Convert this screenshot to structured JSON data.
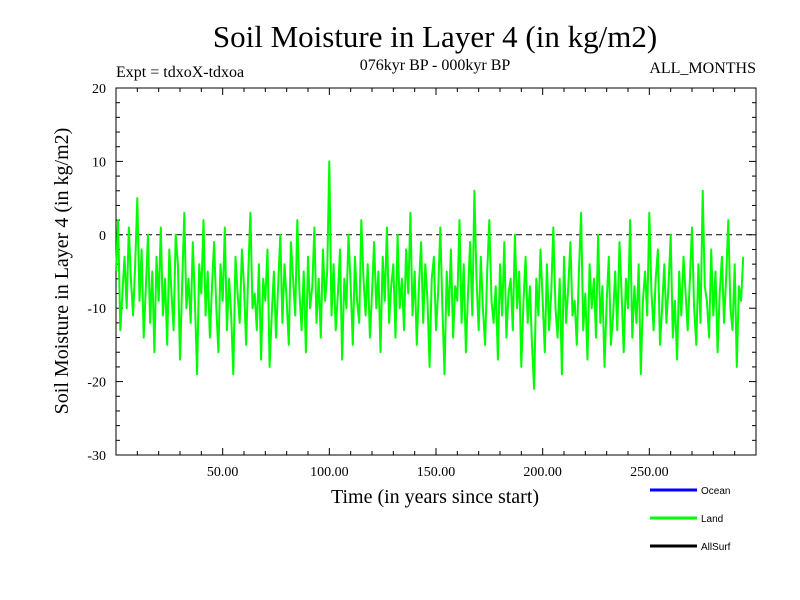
{
  "chart_data": {
    "type": "line",
    "title": "Soil Moisture in Layer 4 (in kg/m2)",
    "subtitle_left": "Expt = tdxoX-tdxoa",
    "subtitle_center": "076kyr BP - 000kyr BP",
    "subtitle_right": "ALL_MONTHS",
    "xlabel": "Time (in years since start)",
    "ylabel": "Soil Moisture in Layer 4 (in kg/m2)",
    "xlim": [
      0,
      300
    ],
    "ylim": [
      -30,
      20
    ],
    "xticks": [
      50,
      100,
      150,
      200,
      250
    ],
    "xtick_labels": [
      "50.00",
      "100.00",
      "150.00",
      "200.00",
      "250.00"
    ],
    "yticks": [
      -30,
      -20,
      -10,
      0,
      10,
      20
    ],
    "ytick_labels": [
      "-30",
      "-20",
      "-10",
      "0",
      "10",
      "20"
    ],
    "reference_line": {
      "y": 0,
      "style": "dashed"
    },
    "legend_placement": "bottom-right, below plot",
    "series": [
      {
        "name": "Ocean",
        "color": "#0000ff",
        "values": []
      },
      {
        "name": "Land",
        "color": "#00ff00",
        "x_start": 0,
        "x_step": 1,
        "values": [
          -5,
          2,
          -13,
          -8,
          -3,
          -10,
          1,
          -6,
          -11,
          -4,
          5,
          -9,
          -2,
          -14,
          -7,
          0,
          -12,
          -5,
          -16,
          -3,
          -9,
          1,
          -11,
          -6,
          -15,
          -2,
          -8,
          -13,
          0,
          -4,
          -17,
          -7,
          3,
          -10,
          -6,
          -12,
          -1,
          -9,
          -19,
          -4,
          -8,
          2,
          -11,
          -5,
          -14,
          -7,
          -1,
          -10,
          -16,
          -4,
          -9,
          1,
          -13,
          -6,
          -11,
          -19,
          -3,
          -8,
          -12,
          -2,
          -7,
          -15,
          -5,
          3,
          -10,
          -8,
          -13,
          -4,
          -17,
          -6,
          -9,
          -2,
          -18,
          -11,
          -5,
          -14,
          -7,
          0,
          -12,
          -4,
          -9,
          -15,
          -1,
          -6,
          -11,
          2,
          -8,
          -13,
          -5,
          -16,
          -3,
          -10,
          -7,
          1,
          -12,
          -6,
          -14,
          -2,
          -9,
          -5,
          10,
          -11,
          -4,
          -13,
          -8,
          -2,
          -17,
          -6,
          -10,
          0,
          -7,
          -15,
          -3,
          -9,
          -12,
          2,
          -6,
          -11,
          -4,
          -14,
          -8,
          -1,
          -10,
          -5,
          -16,
          -3,
          -9,
          1,
          -12,
          -7,
          -4,
          -14,
          0,
          -10,
          -6,
          -13,
          -2,
          -8,
          3,
          -11,
          -5,
          -15,
          -7,
          -1,
          -12,
          -4,
          -9,
          -18,
          -6,
          -3,
          -13,
          -8,
          1,
          -10,
          -19,
          -5,
          -11,
          -2,
          -14,
          -7,
          -9,
          2,
          -12,
          -4,
          -16,
          -8,
          -1,
          -11,
          6,
          -6,
          -13,
          -3,
          -10,
          -15,
          -5,
          2,
          -9,
          -12,
          -7,
          -17,
          -4,
          -11,
          -1,
          -14,
          -8,
          -6,
          -13,
          0,
          -10,
          -5,
          -18,
          -9,
          -3,
          -12,
          -7,
          -15,
          -21,
          -6,
          -11,
          -2,
          -9,
          -16,
          -4,
          -13,
          -8,
          1,
          -10,
          -14,
          -6,
          -19,
          -3,
          -12,
          -7,
          -1,
          -11,
          -9,
          -15,
          -5,
          3,
          -13,
          -8,
          -17,
          -4,
          -10,
          -6,
          -14,
          0,
          -12,
          -7,
          -18,
          -9,
          -3,
          -15,
          -11,
          -5,
          -13,
          -1,
          -8,
          -16,
          -6,
          -10,
          2,
          -14,
          -7,
          -12,
          -4,
          -19,
          -9,
          -5,
          -11,
          3,
          -8,
          -13,
          -6,
          -2,
          -15,
          -10,
          -4,
          -12,
          -7,
          0,
          -14,
          -9,
          -17,
          -5,
          -11,
          -3,
          -8,
          -13,
          -6,
          1,
          -10,
          -15,
          -4,
          -12,
          6,
          -7,
          -9,
          -14,
          -2,
          -11,
          -5,
          -16,
          -8,
          -3,
          -12,
          -6,
          2,
          -10,
          -13,
          -4,
          -18,
          -7,
          -9,
          -3
        ]
      },
      {
        "name": "AllSurf",
        "color": "#000000",
        "values": []
      }
    ],
    "grid": false
  }
}
